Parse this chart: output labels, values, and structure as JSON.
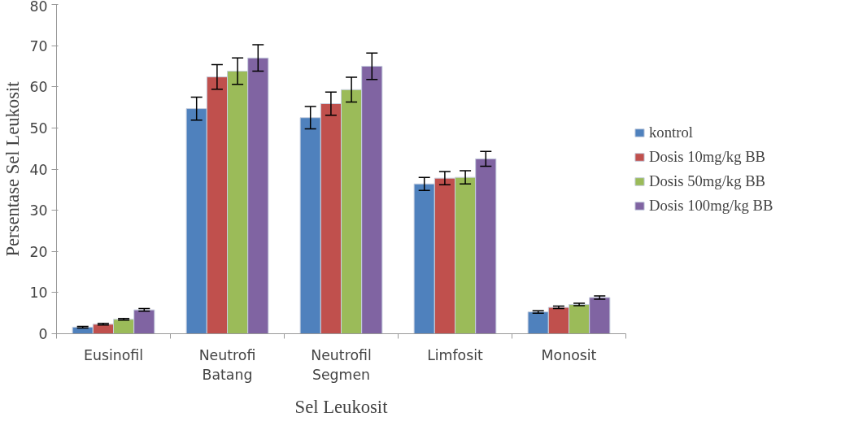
{
  "chart_data": {
    "type": "bar",
    "xlabel": "Sel Leukosit",
    "ylabel": "Persentase Sel Leukosit",
    "categories": [
      "Eusinofil",
      "Neutrofi\nBatang",
      "Neutrofil\nSegmen",
      "Limfosit",
      "Monosit"
    ],
    "series": [
      {
        "name": "kontrol",
        "color": "#4f81bd",
        "values": [
          1.6,
          54.7,
          52.5,
          36.4,
          5.3
        ],
        "errors": [
          0.2,
          2.8,
          2.7,
          1.6,
          0.3
        ]
      },
      {
        "name": "Dosis 10mg/kg BB",
        "color": "#c0504d",
        "values": [
          2.3,
          62.4,
          55.9,
          37.8,
          6.4
        ],
        "errors": [
          0.2,
          3.0,
          2.8,
          1.6,
          0.3
        ]
      },
      {
        "name": "Dosis 50mg/kg BB",
        "color": "#9bbb59",
        "values": [
          3.5,
          63.8,
          59.3,
          38.0,
          7.1
        ],
        "errors": [
          0.2,
          3.2,
          3.0,
          1.6,
          0.3
        ]
      },
      {
        "name": "Dosis 100mg/kg BB",
        "color": "#8064a2",
        "values": [
          5.8,
          67.0,
          65.0,
          42.5,
          8.8
        ],
        "errors": [
          0.3,
          3.2,
          3.2,
          1.8,
          0.4
        ]
      }
    ],
    "ylim": [
      0,
      80
    ],
    "yticks": [
      0,
      10,
      20,
      30,
      40,
      50,
      60,
      70,
      80
    ],
    "grid": false,
    "legend": "right"
  }
}
